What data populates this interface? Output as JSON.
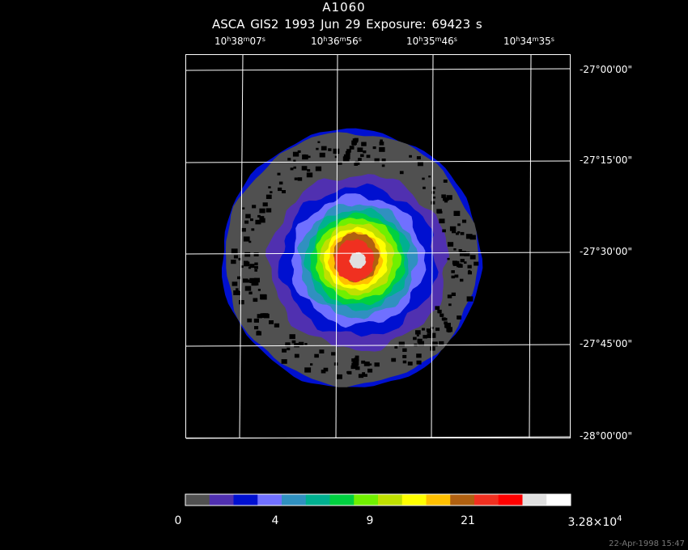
{
  "header": {
    "title": "A1060",
    "subtitle": "ASCA GIS2    1993 Jun 29    Exposure: 69423 s"
  },
  "ra_labels": [
    {
      "h": "10",
      "m": "38",
      "s": "07"
    },
    {
      "h": "10",
      "m": "36",
      "s": "56"
    },
    {
      "h": "10",
      "m": "35",
      "s": "46"
    },
    {
      "h": "10",
      "m": "34",
      "s": "35"
    }
  ],
  "dec_labels": [
    "-27°00'00\"",
    "-27°15'00\"",
    "-27°30'00\"",
    "-27°45'00\"",
    "-28°00'00\""
  ],
  "colorbar": {
    "colors": [
      "#505050",
      "#5030b0",
      "#0010d0",
      "#7070ff",
      "#3090c0",
      "#00b090",
      "#00d040",
      "#70f000",
      "#c0e000",
      "#ffff00",
      "#ffc000",
      "#b06010",
      "#f03020",
      "#ff0000",
      "#e0e0e0",
      "#ffffff"
    ],
    "labels": [
      {
        "text": "0",
        "sup": ""
      },
      {
        "text": "4",
        "sup": ""
      },
      {
        "text": "9",
        "sup": ""
      },
      {
        "text": "21",
        "sup": ""
      },
      {
        "text": "3.28×10",
        "sup": "4"
      }
    ]
  },
  "footer": {
    "timestamp": "22-Apr-1998 15:47"
  }
}
